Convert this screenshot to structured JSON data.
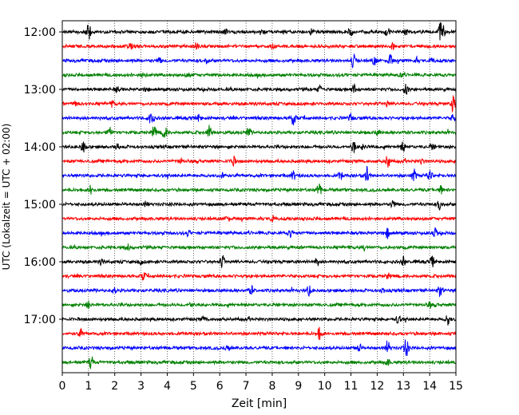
{
  "chart_data": {
    "type": "line",
    "title": "",
    "xlabel": "Zeit  [min]",
    "ylabel": "UTC (Lokalzeit = UTC + 02:00)",
    "xlim": [
      0,
      15
    ],
    "x_ticks": [
      0,
      1,
      2,
      3,
      4,
      5,
      6,
      7,
      8,
      9,
      10,
      11,
      12,
      13,
      14,
      15
    ],
    "x_tick_labels": [
      "0",
      "1",
      "2",
      "3",
      "4",
      "5",
      "6",
      "7",
      "8",
      "9",
      "10",
      "11",
      "12",
      "13",
      "14",
      "15"
    ],
    "y_tick_labels": [
      "12:00",
      "13:00",
      "14:00",
      "15:00",
      "16:00",
      "17:00"
    ],
    "y_tick_rows": [
      0,
      4,
      8,
      12,
      16,
      20
    ],
    "grid": "vertical-dotted",
    "series_colors": [
      "#000000",
      "#ff0000",
      "#0000ff",
      "#008000"
    ],
    "rows": [
      {
        "start": "12:00",
        "color": "#000000",
        "events": [
          [
            1.0,
            11
          ],
          [
            6.2,
            3
          ],
          [
            7.6,
            3
          ],
          [
            9.5,
            3
          ],
          [
            11.0,
            4
          ],
          [
            12.4,
            4
          ],
          [
            13.1,
            3
          ],
          [
            14.4,
            9
          ],
          [
            14.5,
            7
          ]
        ]
      },
      {
        "start": "12:15",
        "color": "#ff0000",
        "events": [
          [
            2.6,
            3
          ],
          [
            5.1,
            4
          ],
          [
            8.0,
            3
          ],
          [
            12.6,
            3
          ]
        ]
      },
      {
        "start": "12:30",
        "color": "#0000ff",
        "events": [
          [
            3.7,
            3
          ],
          [
            5.5,
            3
          ],
          [
            11.1,
            9
          ],
          [
            11.9,
            5
          ],
          [
            12.5,
            8
          ],
          [
            13.5,
            3
          ],
          [
            14.1,
            3
          ]
        ]
      },
      {
        "start": "12:45",
        "color": "#008000",
        "events": [
          [
            3.1,
            3
          ],
          [
            4.8,
            3
          ],
          [
            12.9,
            3
          ]
        ]
      },
      {
        "start": "13:00",
        "color": "#000000",
        "events": [
          [
            2.1,
            3
          ],
          [
            3.2,
            3
          ],
          [
            9.8,
            4
          ],
          [
            11.1,
            6
          ],
          [
            13.1,
            7
          ]
        ]
      },
      {
        "start": "13:15",
        "color": "#ff0000",
        "events": [
          [
            0.5,
            3
          ],
          [
            1.9,
            3
          ],
          [
            12.4,
            3
          ],
          [
            14.9,
            11
          ]
        ]
      },
      {
        "start": "13:30",
        "color": "#0000ff",
        "events": [
          [
            3.4,
            10
          ],
          [
            5.2,
            4
          ],
          [
            8.8,
            9
          ],
          [
            11.0,
            4
          ],
          [
            14.9,
            4
          ]
        ]
      },
      {
        "start": "13:45",
        "color": "#008000",
        "events": [
          [
            1.8,
            6
          ],
          [
            3.5,
            7
          ],
          [
            3.9,
            8
          ],
          [
            5.6,
            8
          ],
          [
            7.1,
            6
          ],
          [
            12.0,
            3
          ]
        ]
      },
      {
        "start": "14:00",
        "color": "#000000",
        "events": [
          [
            0.8,
            6
          ],
          [
            2.1,
            3
          ],
          [
            11.1,
            7
          ],
          [
            11.5,
            4
          ],
          [
            13.0,
            6
          ],
          [
            14.1,
            3
          ]
        ]
      },
      {
        "start": "14:15",
        "color": "#ff0000",
        "events": [
          [
            6.5,
            7
          ],
          [
            12.4,
            8
          ],
          [
            4.5,
            3
          ],
          [
            13.7,
            3
          ]
        ]
      },
      {
        "start": "14:30",
        "color": "#0000ff",
        "events": [
          [
            6.1,
            5
          ],
          [
            8.8,
            5
          ],
          [
            10.6,
            4
          ],
          [
            11.6,
            10
          ],
          [
            13.4,
            8
          ],
          [
            14.0,
            7
          ]
        ]
      },
      {
        "start": "14:45",
        "color": "#008000",
        "events": [
          [
            1.1,
            6
          ],
          [
            9.8,
            8
          ],
          [
            14.4,
            6
          ]
        ]
      },
      {
        "start": "15:00",
        "color": "#000000",
        "events": [
          [
            3.2,
            3
          ],
          [
            12.6,
            5
          ],
          [
            14.4,
            7
          ]
        ]
      },
      {
        "start": "15:15",
        "color": "#ff0000",
        "events": [
          [
            6.3,
            3
          ],
          [
            8.0,
            3
          ]
        ]
      },
      {
        "start": "15:30",
        "color": "#0000ff",
        "events": [
          [
            4.8,
            3
          ],
          [
            8.7,
            4
          ],
          [
            12.4,
            6
          ],
          [
            14.2,
            6
          ]
        ]
      },
      {
        "start": "15:45",
        "color": "#008000",
        "events": [
          [
            2.5,
            3
          ],
          [
            11.5,
            3
          ]
        ]
      },
      {
        "start": "16:00",
        "color": "#000000",
        "events": [
          [
            1.5,
            3
          ],
          [
            3.0,
            3
          ],
          [
            6.1,
            7
          ],
          [
            9.7,
            5
          ],
          [
            13.0,
            5
          ],
          [
            14.1,
            6
          ]
        ]
      },
      {
        "start": "16:15",
        "color": "#ff0000",
        "events": [
          [
            3.1,
            5
          ],
          [
            12.4,
            3
          ]
        ]
      },
      {
        "start": "16:30",
        "color": "#0000ff",
        "events": [
          [
            2.0,
            3
          ],
          [
            7.2,
            5
          ],
          [
            9.4,
            6
          ],
          [
            12.2,
            3
          ],
          [
            14.4,
            7
          ]
        ]
      },
      {
        "start": "16:45",
        "color": "#008000",
        "events": [
          [
            1.0,
            5
          ],
          [
            4.9,
            3
          ],
          [
            14.0,
            3
          ]
        ]
      },
      {
        "start": "17:00",
        "color": "#000000",
        "events": [
          [
            5.4,
            3
          ],
          [
            12.8,
            5
          ],
          [
            14.7,
            7
          ]
        ]
      },
      {
        "start": "17:15",
        "color": "#ff0000",
        "events": [
          [
            0.7,
            4
          ],
          [
            9.8,
            7
          ]
        ]
      },
      {
        "start": "17:30",
        "color": "#0000ff",
        "events": [
          [
            11.3,
            6
          ],
          [
            12.4,
            9
          ],
          [
            13.1,
            12
          ],
          [
            6.3,
            3
          ]
        ]
      },
      {
        "start": "17:45",
        "color": "#008000",
        "events": [
          [
            1.1,
            7
          ],
          [
            12.4,
            4
          ]
        ]
      }
    ]
  }
}
